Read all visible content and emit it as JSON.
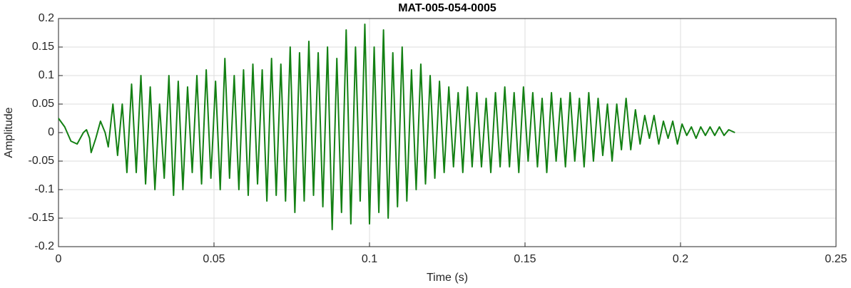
{
  "chart_data": {
    "type": "line",
    "title": "MAT-005-054-0005",
    "x_label": "Time (s)",
    "y_label": "Amplitude",
    "color": "#138013",
    "grid": true,
    "xlim": [
      0,
      0.25
    ],
    "xticks": [
      0,
      0.05,
      0.1,
      0.15,
      0.2,
      0.25
    ],
    "ylim": [
      -0.2,
      0.2
    ],
    "yticks": [
      -0.2,
      -0.15,
      -0.1,
      -0.05,
      0,
      0.05,
      0.1,
      0.15,
      0.2
    ],
    "x": [
      0,
      0.002,
      0.004,
      0.006,
      0.008,
      0.009,
      0.01,
      0.0105,
      0.012,
      0.0135,
      0.015,
      0.016,
      0.0175,
      0.019,
      0.0205,
      0.022,
      0.0235,
      0.025,
      0.0265,
      0.028,
      0.0295,
      0.031,
      0.0325,
      0.034,
      0.0355,
      0.037,
      0.0385,
      0.04,
      0.0415,
      0.043,
      0.0445,
      0.046,
      0.0475,
      0.049,
      0.0505,
      0.052,
      0.0535,
      0.055,
      0.0565,
      0.058,
      0.0595,
      0.061,
      0.0625,
      0.064,
      0.0655,
      0.067,
      0.0685,
      0.07,
      0.0715,
      0.073,
      0.0745,
      0.076,
      0.0775,
      0.079,
      0.0805,
      0.082,
      0.0835,
      0.085,
      0.0865,
      0.088,
      0.0895,
      0.091,
      0.0925,
      0.094,
      0.0955,
      0.097,
      0.0985,
      0.1,
      0.1015,
      0.103,
      0.1045,
      0.106,
      0.1075,
      0.109,
      0.1105,
      0.112,
      0.1135,
      0.115,
      0.1165,
      0.118,
      0.1195,
      0.121,
      0.1225,
      0.124,
      0.1255,
      0.127,
      0.1285,
      0.13,
      0.1315,
      0.133,
      0.1345,
      0.136,
      0.1375,
      0.139,
      0.1405,
      0.142,
      0.1435,
      0.145,
      0.1465,
      0.148,
      0.1495,
      0.151,
      0.1525,
      0.154,
      0.1555,
      0.157,
      0.1585,
      0.16,
      0.1615,
      0.163,
      0.1645,
      0.166,
      0.1675,
      0.169,
      0.1705,
      0.172,
      0.1735,
      0.175,
      0.1765,
      0.178,
      0.1795,
      0.181,
      0.1825,
      0.184,
      0.1855,
      0.187,
      0.1885,
      0.19,
      0.1915,
      0.193,
      0.1945,
      0.196,
      0.1975,
      0.199,
      0.2005,
      0.202,
      0.2035,
      0.205,
      0.2065,
      0.208,
      0.2095,
      0.211,
      0.2125,
      0.214,
      0.2155,
      0.2175
    ],
    "values": [
      0.025,
      0.01,
      -0.015,
      -0.02,
      0.0,
      0.005,
      -0.01,
      -0.035,
      -0.01,
      0.02,
      0.0,
      -0.025,
      0.05,
      -0.04,
      0.05,
      -0.07,
      0.085,
      -0.07,
      0.1,
      -0.09,
      0.08,
      -0.1,
      0.05,
      -0.08,
      0.1,
      -0.11,
      0.09,
      -0.1,
      0.08,
      -0.07,
      0.1,
      -0.09,
      0.11,
      -0.08,
      0.09,
      -0.1,
      0.13,
      -0.08,
      0.1,
      -0.1,
      0.11,
      -0.11,
      0.12,
      -0.09,
      0.11,
      -0.12,
      0.13,
      -0.11,
      0.12,
      -0.12,
      0.15,
      -0.14,
      0.14,
      -0.12,
      0.16,
      -0.11,
      0.14,
      -0.13,
      0.15,
      -0.17,
      0.13,
      -0.14,
      0.18,
      -0.16,
      0.15,
      -0.12,
      0.19,
      -0.16,
      0.15,
      -0.14,
      0.18,
      -0.15,
      0.14,
      -0.13,
      0.15,
      -0.12,
      0.11,
      -0.1,
      0.12,
      -0.09,
      0.1,
      -0.08,
      0.09,
      -0.07,
      0.08,
      -0.06,
      0.07,
      -0.07,
      0.08,
      -0.06,
      0.07,
      -0.06,
      0.06,
      -0.07,
      0.07,
      -0.06,
      0.08,
      -0.06,
      0.07,
      -0.07,
      0.08,
      -0.05,
      0.07,
      -0.06,
      0.06,
      -0.07,
      0.07,
      -0.05,
      0.06,
      -0.06,
      0.07,
      -0.05,
      0.06,
      -0.06,
      0.07,
      -0.05,
      0.06,
      -0.04,
      0.05,
      -0.05,
      0.05,
      -0.03,
      0.06,
      -0.03,
      0.04,
      -0.02,
      0.03,
      -0.01,
      0.03,
      -0.02,
      0.02,
      -0.01,
      0.02,
      -0.02,
      0.015,
      -0.005,
      0.01,
      -0.01,
      0.01,
      -0.005,
      0.01,
      -0.005,
      0.01,
      -0.005,
      0.005,
      0.0
    ]
  }
}
